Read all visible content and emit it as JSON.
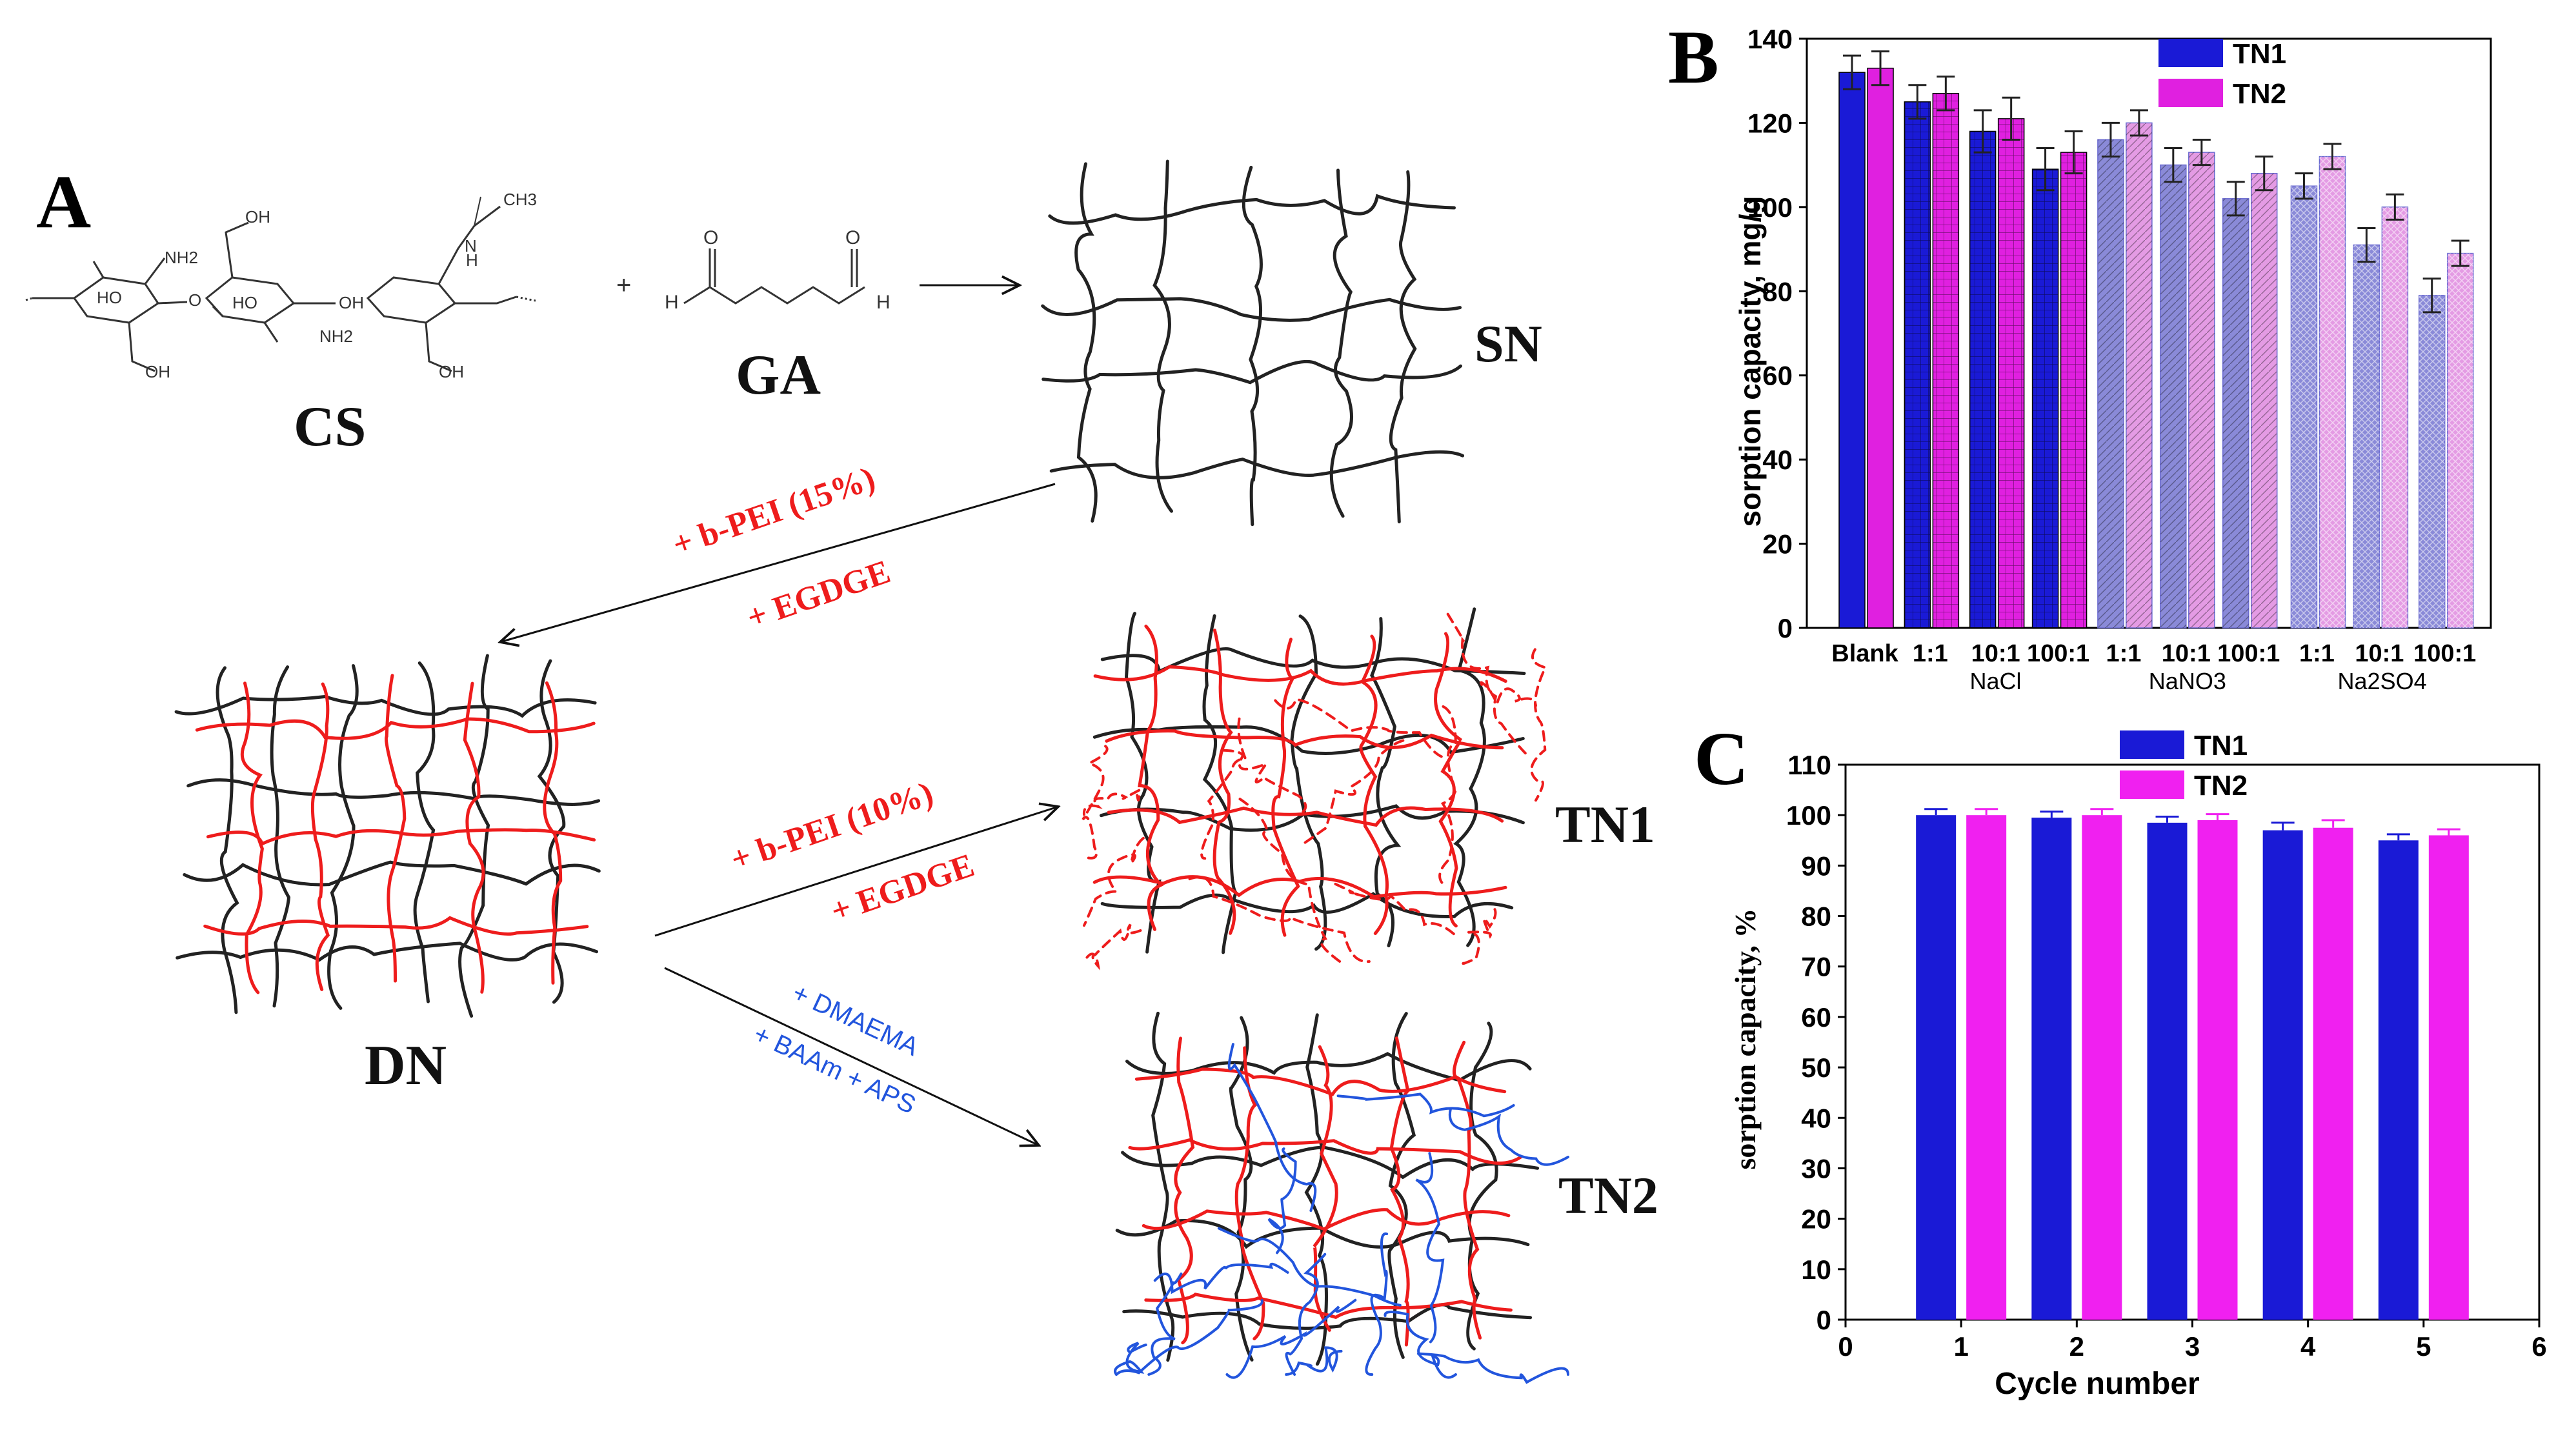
{
  "panel_a": {
    "letter": "A",
    "cs_label": "CS",
    "ga_label": "GA",
    "plus": "+",
    "cs_atoms": {
      "nh2_a": "NH2",
      "nh2_b": "NH2",
      "ho_1": "HO",
      "ho_2": "HO",
      "oh_1": "OH",
      "oh_2": "OH",
      "oh_3": "OH",
      "oh_4": "OH",
      "ch3": "CH3",
      "nh": "N",
      "h": "H",
      "o": "O"
    },
    "ga_atoms": {
      "h_left": "H",
      "h_right": "H",
      "o_left": "O",
      "o_right": "O"
    },
    "network_labels": {
      "sn": "SN",
      "dn": "DN",
      "tn1": "TN1",
      "tn2": "TN2"
    },
    "reagents": {
      "sn_to_dn_1": "+ b-PEI (15%)",
      "sn_to_dn_2": "+ EGDGE",
      "dn_to_tn1_1": "+ b-PEI (10%)",
      "dn_to_tn1_2": "+ EGDGE",
      "dn_to_tn2_1": "+ DMAEMA",
      "dn_to_tn2_2": "+ BAAm  + APS"
    },
    "colors": {
      "black_network": "#222222",
      "red_network": "#ee1c1c",
      "blue_network": "#2255dd",
      "reagent_red": "#ee1c1c",
      "reagent_blue": "#2255dd"
    }
  },
  "panel_b": {
    "letter": "B",
    "chart_data": {
      "type": "bar",
      "ylabel": "sorption capacity, mg/g",
      "ylim": [
        0,
        140
      ],
      "yticks": [
        0,
        20,
        40,
        60,
        80,
        100,
        120,
        140
      ],
      "categories": [
        "Blank",
        "1:1",
        "10:1",
        "100:1",
        "1:1",
        "10:1",
        "100:1",
        "1:1",
        "10:1",
        "100:1"
      ],
      "groups": [
        {
          "label": "NaCl",
          "from": 1,
          "to": 3
        },
        {
          "label": "NaNO3",
          "from": 4,
          "to": 6
        },
        {
          "label": "Na2SO4",
          "from": 7,
          "to": 9
        }
      ],
      "series": [
        {
          "name": "TN1",
          "color": "#1a1ad6",
          "values": [
            132,
            125,
            118,
            109,
            116,
            110,
            102,
            105,
            91,
            79
          ],
          "errors": [
            4,
            4,
            5,
            5,
            4,
            4,
            4,
            3,
            4,
            4
          ]
        },
        {
          "name": "TN2",
          "color": "#e020e0",
          "values": [
            133,
            127,
            121,
            113,
            120,
            113,
            108,
            112,
            100,
            89
          ],
          "errors": [
            4,
            4,
            5,
            5,
            3,
            3,
            4,
            3,
            3,
            3
          ]
        }
      ],
      "legend": "top-right"
    }
  },
  "panel_c": {
    "letter": "C",
    "chart_data": {
      "type": "bar",
      "xlabel": "Cycle number",
      "ylabel": "sorption  capacity, %",
      "xlim": [
        0,
        6
      ],
      "xticks": [
        0,
        1,
        2,
        3,
        4,
        5,
        6
      ],
      "ylim": [
        0,
        110
      ],
      "yticks": [
        0,
        10,
        20,
        30,
        40,
        50,
        60,
        70,
        80,
        90,
        100,
        110
      ],
      "x": [
        1,
        2,
        3,
        4,
        5
      ],
      "series": [
        {
          "name": "TN1",
          "color": "#1a1ad6",
          "values": [
            100,
            99.5,
            98.5,
            97,
            95
          ],
          "errors": [
            1.2,
            1.2,
            1.2,
            1.5,
            1.2
          ]
        },
        {
          "name": "TN2",
          "color": "#f020f0",
          "values": [
            100,
            100,
            99,
            97.5,
            96
          ],
          "errors": [
            1.2,
            1.2,
            1.2,
            1.5,
            1.2
          ]
        }
      ],
      "legend": "top-center"
    }
  }
}
